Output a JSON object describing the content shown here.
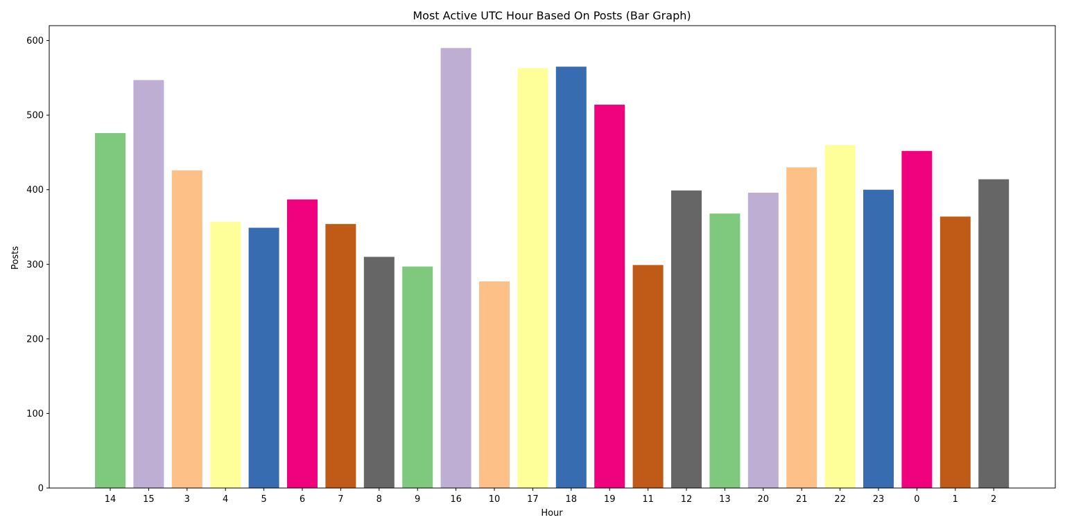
{
  "chart_data": {
    "type": "bar",
    "title": "Most Active UTC Hour Based On Posts (Bar Graph)",
    "xlabel": "Hour",
    "ylabel": "Posts",
    "categories": [
      "14",
      "15",
      "3",
      "4",
      "5",
      "6",
      "7",
      "8",
      "9",
      "16",
      "10",
      "17",
      "18",
      "19",
      "11",
      "12",
      "13",
      "20",
      "21",
      "22",
      "23",
      "0",
      "1",
      "2"
    ],
    "values": [
      476,
      547,
      426,
      357,
      349,
      387,
      354,
      310,
      297,
      590,
      277,
      563,
      565,
      514,
      299,
      399,
      368,
      396,
      430,
      460,
      400,
      452,
      364,
      414
    ],
    "colors": [
      "#7fc97f",
      "#beaed4",
      "#fdc086",
      "#ffff99",
      "#386cb0",
      "#f0027f",
      "#bf5b17",
      "#666666",
      "#7fc97f",
      "#beaed4",
      "#fdc086",
      "#ffff99",
      "#386cb0",
      "#f0027f",
      "#bf5b17",
      "#666666",
      "#7fc97f",
      "#beaed4",
      "#fdc086",
      "#ffff99",
      "#386cb0",
      "#f0027f",
      "#bf5b17",
      "#666666"
    ],
    "yticks": [
      0,
      100,
      200,
      300,
      400,
      500,
      600
    ],
    "ylim": [
      0,
      620
    ],
    "grid": false,
    "legend": "none"
  }
}
